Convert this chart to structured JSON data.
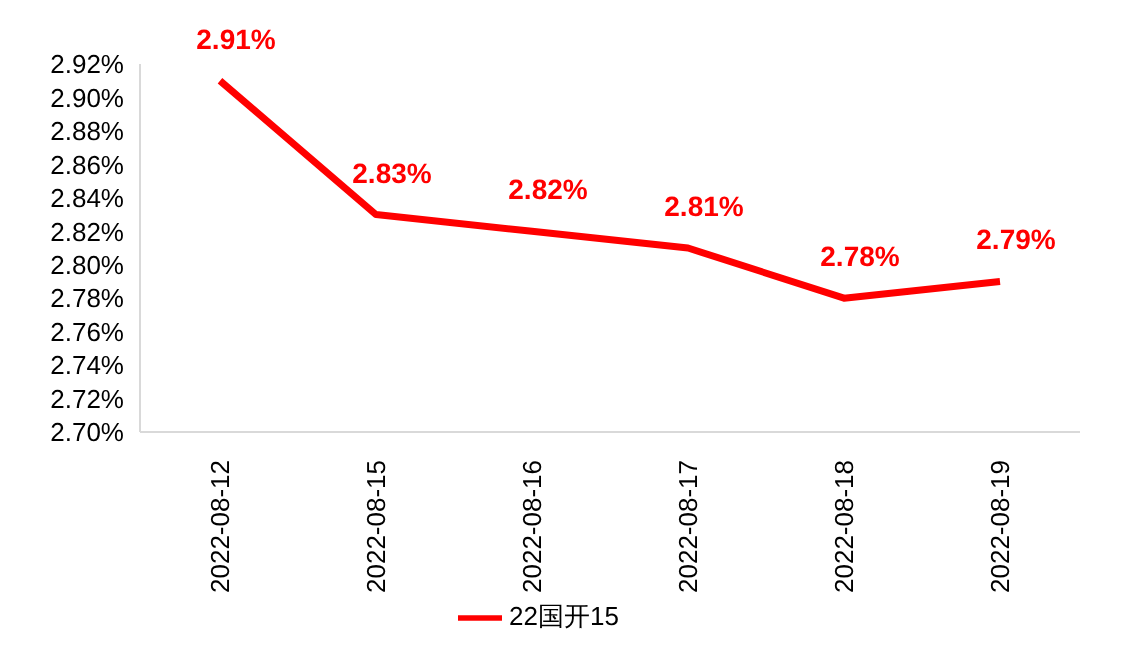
{
  "chart_data": {
    "type": "line",
    "categories": [
      "2022-08-12",
      "2022-08-15",
      "2022-08-16",
      "2022-08-17",
      "2022-08-18",
      "2022-08-19"
    ],
    "series": [
      {
        "name": "22国开15",
        "color": "#ff0000",
        "values": [
          2.91,
          2.83,
          2.82,
          2.81,
          2.78,
          2.79
        ]
      }
    ],
    "ylim": [
      2.7,
      2.92
    ],
    "yticks": [
      {
        "value": 2.7,
        "label": "2.70%"
      },
      {
        "value": 2.72,
        "label": "2.72%"
      },
      {
        "value": 2.74,
        "label": "2.74%"
      },
      {
        "value": 2.76,
        "label": "2.76%"
      },
      {
        "value": 2.78,
        "label": "2.78%"
      },
      {
        "value": 2.8,
        "label": "2.80%"
      },
      {
        "value": 2.82,
        "label": "2.82%"
      },
      {
        "value": 2.84,
        "label": "2.84%"
      },
      {
        "value": 2.86,
        "label": "2.86%"
      },
      {
        "value": 2.88,
        "label": "2.88%"
      },
      {
        "value": 2.9,
        "label": "2.90%"
      },
      {
        "value": 2.92,
        "label": "2.92%"
      }
    ],
    "value_labels": [
      "2.91%",
      "2.83%",
      "2.82%",
      "2.81%",
      "2.78%",
      "2.79%"
    ],
    "grid": false,
    "legend": "bottom",
    "marker": "none",
    "line_style": "solid"
  }
}
